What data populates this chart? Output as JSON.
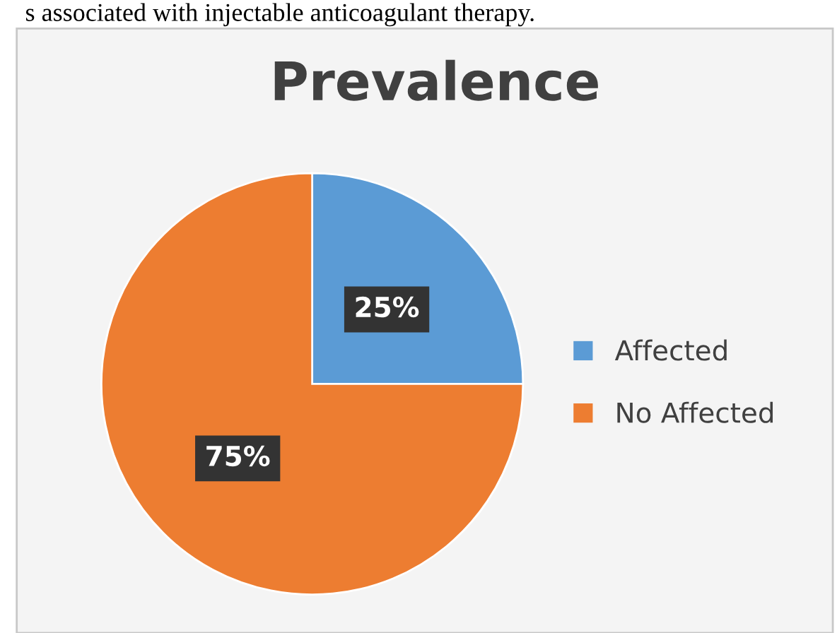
{
  "chart_data": {
    "type": "pie",
    "title": "Prevalence",
    "categories": [
      "Affected",
      "No Affected"
    ],
    "values": [
      25,
      75
    ],
    "colors": [
      "#5b9bd5",
      "#ed7d31"
    ],
    "value_labels": [
      "25%",
      "75%"
    ],
    "legend": "right",
    "annotations": [
      "s associated with injectable anticoagulant therapy."
    ]
  }
}
